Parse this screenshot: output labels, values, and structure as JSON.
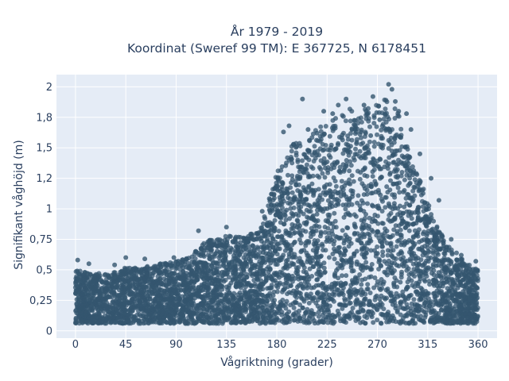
{
  "chart_data": {
    "type": "scatter",
    "title_line1": "År 1979 - 2019",
    "title_line2": "Koordinat (Sweref 99 TM): E 367725, N 6178451",
    "xlabel": "Vågriktning (grader)",
    "ylabel": "Signifikant våghöjd (m)",
    "xlim": [
      -17,
      377
    ],
    "ylim": [
      -0.06,
      2.1
    ],
    "xticks": [
      0,
      45,
      90,
      135,
      180,
      225,
      270,
      315,
      360
    ],
    "xtick_labels": [
      "0",
      "45",
      "90",
      "135",
      "180",
      "225",
      "270",
      "315",
      "360"
    ],
    "yticks": [
      0,
      0.25,
      0.5,
      0.75,
      1,
      1.25,
      1.5,
      1.75,
      2
    ],
    "ytick_labels": [
      "0",
      "0,25",
      "0,5",
      "0,75",
      "1",
      "1,2",
      "1,5",
      "1,8",
      "2"
    ],
    "grid": true,
    "marker_color": "#34566f",
    "background_color": "#e5ecf6",
    "envelope": {
      "x": [
        0,
        15,
        30,
        45,
        60,
        75,
        90,
        105,
        115,
        125,
        135,
        150,
        165,
        180,
        195,
        210,
        225,
        240,
        255,
        270,
        280,
        290,
        300,
        310,
        320,
        330,
        340,
        350,
        360
      ],
      "y_max": [
        0.5,
        0.48,
        0.47,
        0.52,
        0.52,
        0.55,
        0.57,
        0.62,
        0.75,
        0.75,
        0.78,
        0.78,
        0.82,
        1.3,
        1.55,
        1.6,
        1.75,
        1.8,
        1.85,
        1.85,
        1.95,
        1.75,
        1.4,
        1.2,
        0.95,
        0.75,
        0.65,
        0.55,
        0.5
      ]
    },
    "outlier_points": [
      {
        "x": 2,
        "y": 0.58
      },
      {
        "x": 12,
        "y": 0.55
      },
      {
        "x": 35,
        "y": 0.54
      },
      {
        "x": 45,
        "y": 0.6
      },
      {
        "x": 62,
        "y": 0.59
      },
      {
        "x": 88,
        "y": 0.6
      },
      {
        "x": 110,
        "y": 0.82
      },
      {
        "x": 135,
        "y": 0.85
      },
      {
        "x": 167,
        "y": 0.98
      },
      {
        "x": 186,
        "y": 1.63
      },
      {
        "x": 191,
        "y": 1.68
      },
      {
        "x": 195,
        "y": 1.53
      },
      {
        "x": 203,
        "y": 1.9
      },
      {
        "x": 208,
        "y": 1.65
      },
      {
        "x": 216,
        "y": 1.62
      },
      {
        "x": 222,
        "y": 1.8
      },
      {
        "x": 230,
        "y": 1.78
      },
      {
        "x": 235,
        "y": 1.85
      },
      {
        "x": 242,
        "y": 1.9
      },
      {
        "x": 250,
        "y": 1.65
      },
      {
        "x": 258,
        "y": 1.85
      },
      {
        "x": 264,
        "y": 1.6
      },
      {
        "x": 266,
        "y": 1.92
      },
      {
        "x": 272,
        "y": 1.73
      },
      {
        "x": 277,
        "y": 1.77
      },
      {
        "x": 280,
        "y": 2.02
      },
      {
        "x": 283,
        "y": 1.98
      },
      {
        "x": 286,
        "y": 1.88
      },
      {
        "x": 289,
        "y": 1.8
      },
      {
        "x": 296,
        "y": 1.78
      },
      {
        "x": 300,
        "y": 1.65
      },
      {
        "x": 308,
        "y": 1.45
      },
      {
        "x": 318,
        "y": 1.25
      },
      {
        "x": 325,
        "y": 1.07
      },
      {
        "x": 336,
        "y": 0.75
      },
      {
        "x": 345,
        "y": 0.62
      },
      {
        "x": 358,
        "y": 0.57
      }
    ]
  }
}
